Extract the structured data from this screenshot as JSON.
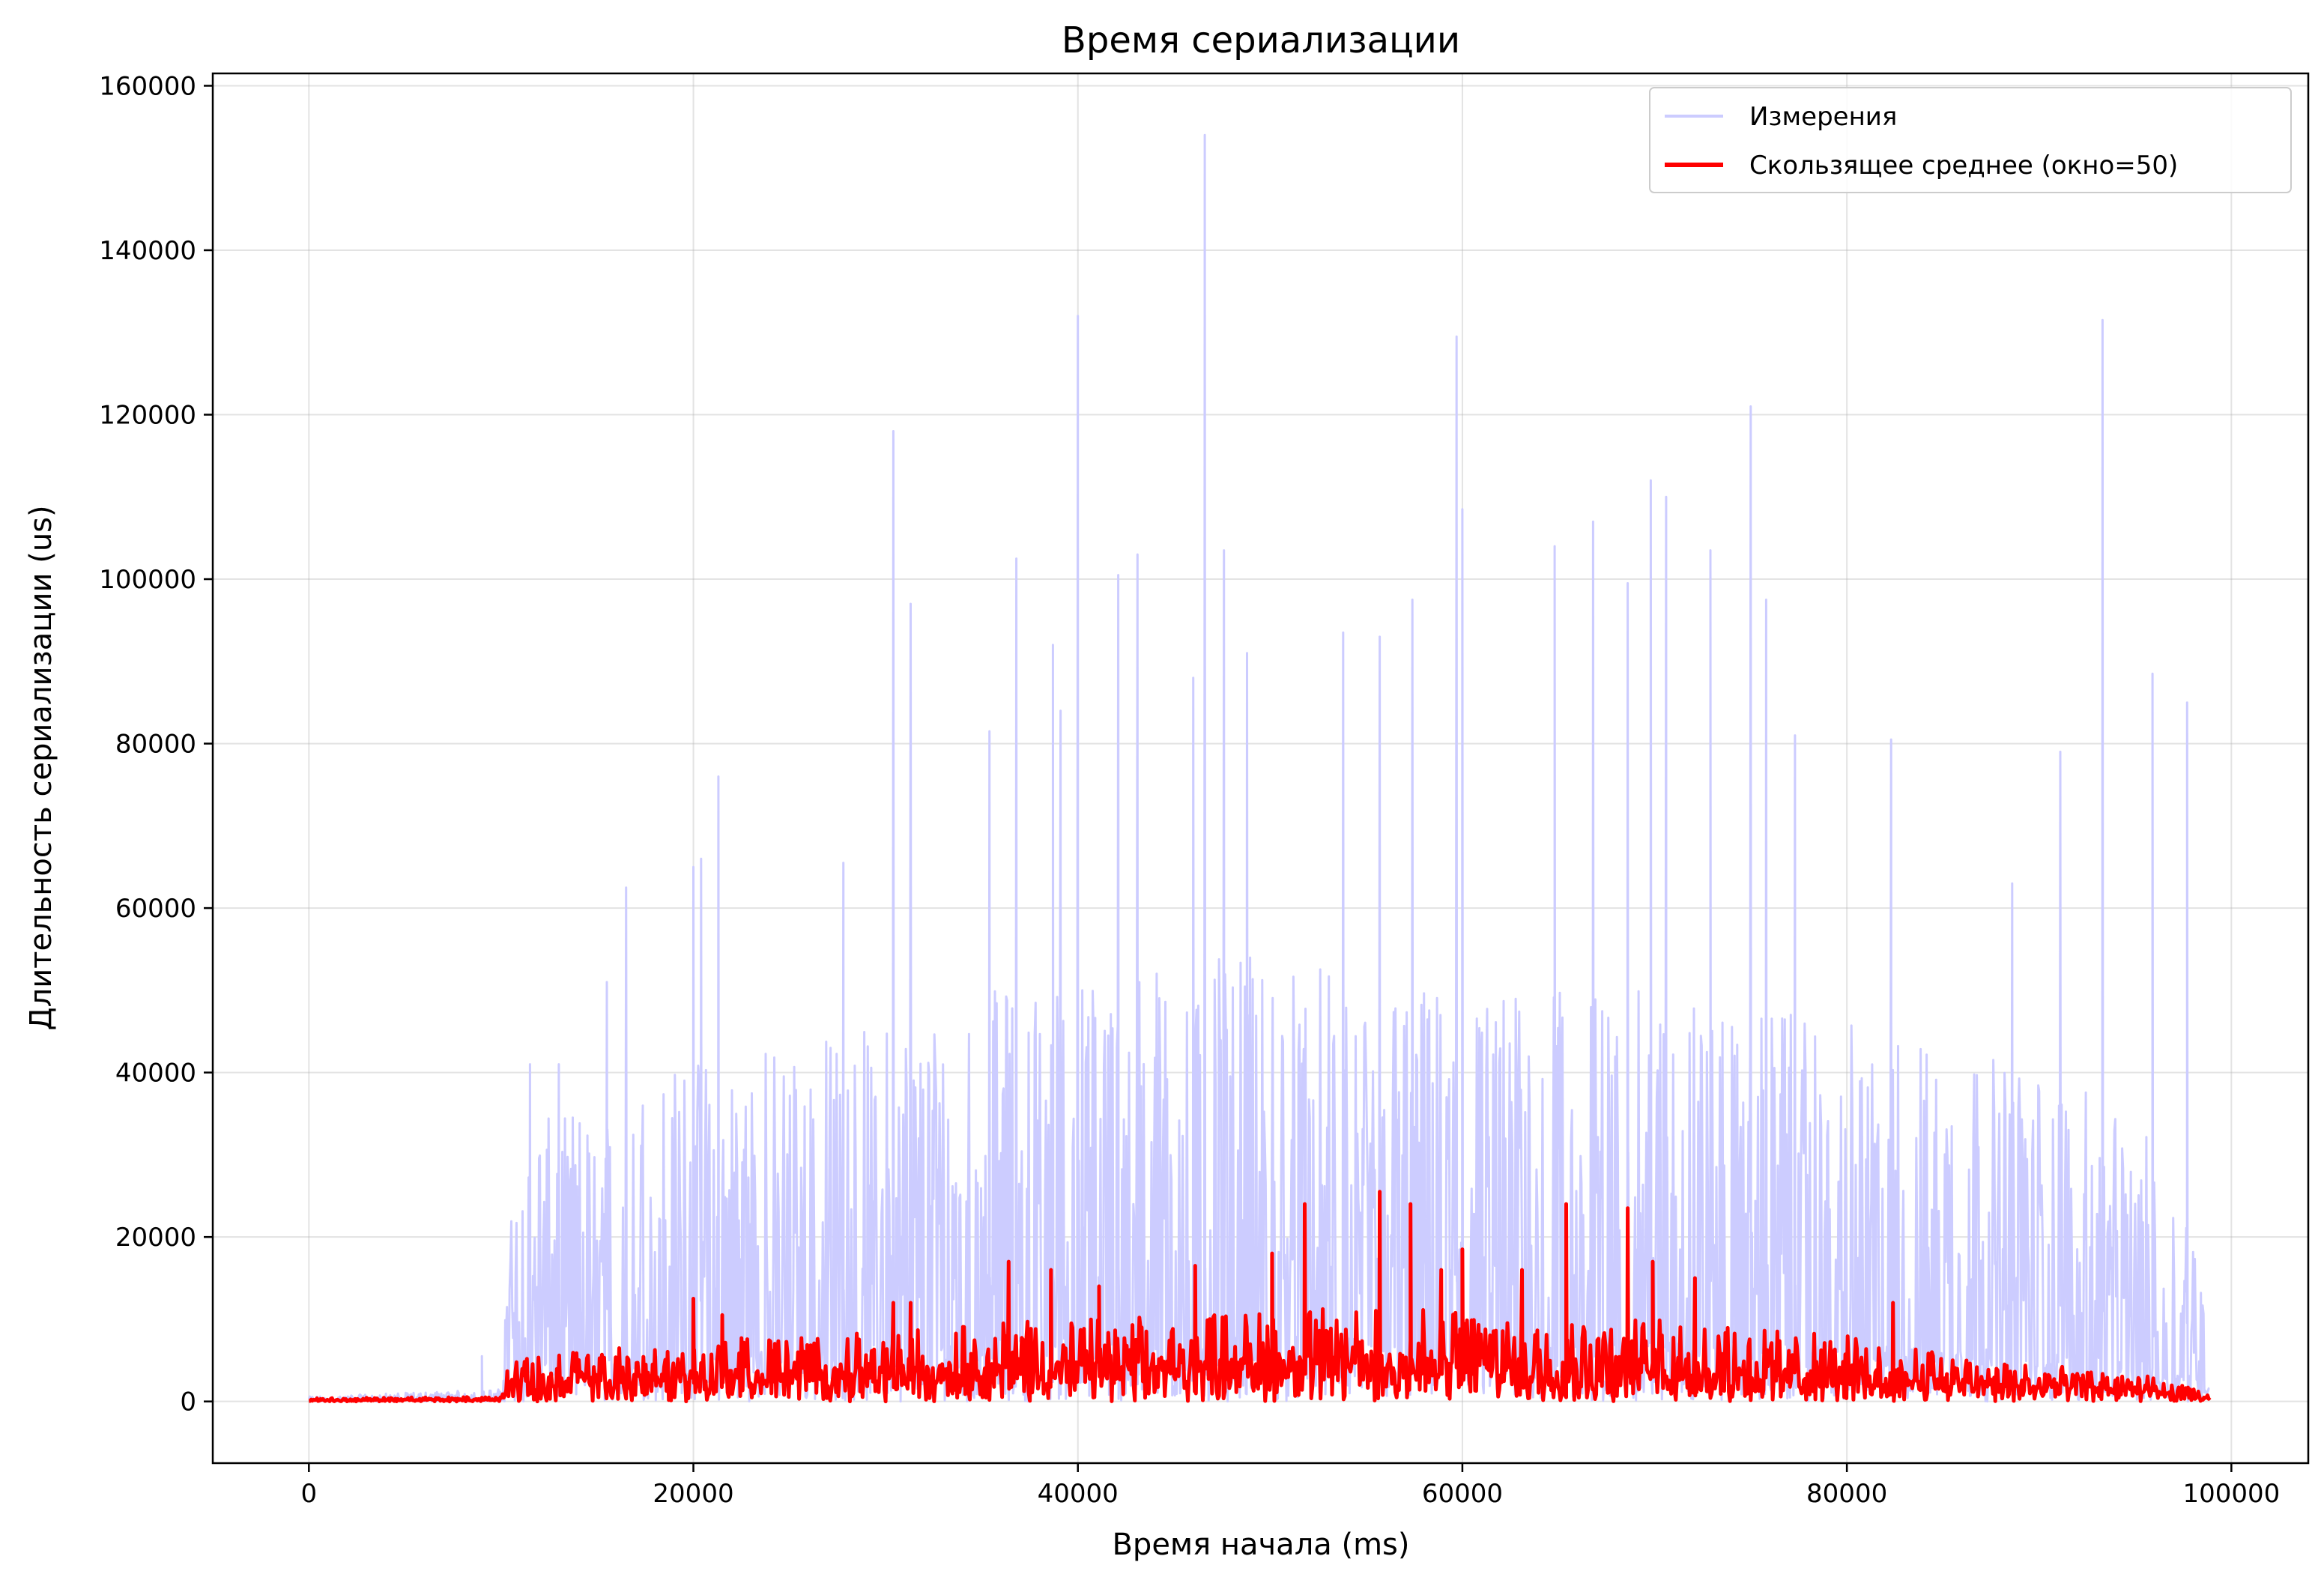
{
  "chart_data": {
    "type": "line",
    "title": "Время сериализации",
    "xlabel": "Время начала (ms)",
    "ylabel": "Длительность сериализации (us)",
    "xlim": [
      -5000,
      104000
    ],
    "ylim": [
      -7500,
      161500
    ],
    "xticks": [
      0,
      20000,
      40000,
      60000,
      80000,
      100000
    ],
    "yticks": [
      0,
      20000,
      40000,
      60000,
      80000,
      100000,
      120000,
      140000,
      160000
    ],
    "grid": true,
    "legend_position": "top-right",
    "series": [
      {
        "name": "Измерения",
        "color": "#ccccff",
        "style": "dense-noisy-line",
        "envelope": {
          "x": [
            0,
            10000,
            10100,
            12000,
            16000,
            20000,
            25000,
            30000,
            35000,
            40000,
            45000,
            50000,
            55000,
            60000,
            65000,
            70000,
            75000,
            80000,
            85000,
            90000,
            95000,
            98000,
            98900
          ],
          "top": [
            600,
            1500,
            20000,
            34000,
            38000,
            42000,
            44000,
            46000,
            50000,
            52000,
            54000,
            54000,
            52000,
            50000,
            50000,
            50000,
            48000,
            46000,
            44000,
            40000,
            35000,
            22000,
            12000
          ]
        },
        "peaks": [
          [
            9000,
            5500
          ],
          [
            11500,
            41000
          ],
          [
            13000,
            41000
          ],
          [
            15500,
            51000
          ],
          [
            16500,
            62500
          ],
          [
            20000,
            65000
          ],
          [
            20400,
            66000
          ],
          [
            21300,
            76000
          ],
          [
            27800,
            65500
          ],
          [
            30400,
            118000
          ],
          [
            31300,
            97000
          ],
          [
            35400,
            81500
          ],
          [
            36800,
            102500
          ],
          [
            38700,
            92000
          ],
          [
            39100,
            84000
          ],
          [
            40000,
            132000
          ],
          [
            42100,
            100500
          ],
          [
            43100,
            103000
          ],
          [
            46000,
            88000
          ],
          [
            46600,
            154000
          ],
          [
            47600,
            103500
          ],
          [
            48800,
            91000
          ],
          [
            53800,
            93500
          ],
          [
            55700,
            93000
          ],
          [
            57400,
            97500
          ],
          [
            59700,
            129500
          ],
          [
            60000,
            108500
          ],
          [
            64800,
            104000
          ],
          [
            66800,
            107000
          ],
          [
            68600,
            99500
          ],
          [
            69800,
            112000
          ],
          [
            70600,
            110000
          ],
          [
            72900,
            103500
          ],
          [
            75000,
            121000
          ],
          [
            75800,
            97500
          ],
          [
            77300,
            81000
          ],
          [
            82300,
            80500
          ],
          [
            88600,
            63000
          ],
          [
            91100,
            79000
          ],
          [
            93300,
            131500
          ],
          [
            95900,
            88500
          ],
          [
            97700,
            85000
          ]
        ]
      },
      {
        "name": "Скользящее среднее (окно=50)",
        "color": "#ff0000",
        "style": "noisy-line",
        "envelope": {
          "x": [
            0,
            10000,
            10300,
            15000,
            20000,
            25000,
            30000,
            35000,
            40000,
            45000,
            50000,
            55000,
            60000,
            65000,
            70000,
            75000,
            80000,
            85000,
            90000,
            95000,
            98900
          ],
          "top": [
            400,
            600,
            5000,
            6500,
            7500,
            8000,
            8500,
            9500,
            10000,
            10500,
            11000,
            11500,
            11000,
            10500,
            10000,
            9000,
            8000,
            6000,
            4500,
            3500,
            1000
          ]
        },
        "peaks": [
          [
            20000,
            12500
          ],
          [
            21500,
            10500
          ],
          [
            30400,
            12000
          ],
          [
            31300,
            12000
          ],
          [
            36400,
            17000
          ],
          [
            38600,
            16000
          ],
          [
            41100,
            14000
          ],
          [
            46100,
            16500
          ],
          [
            50100,
            18000
          ],
          [
            51800,
            24000
          ],
          [
            55700,
            25500
          ],
          [
            57300,
            24000
          ],
          [
            58900,
            16000
          ],
          [
            60000,
            18500
          ],
          [
            63100,
            16000
          ],
          [
            65400,
            24000
          ],
          [
            68600,
            23500
          ],
          [
            69900,
            17000
          ],
          [
            72100,
            15000
          ],
          [
            82400,
            12000
          ]
        ]
      }
    ]
  }
}
